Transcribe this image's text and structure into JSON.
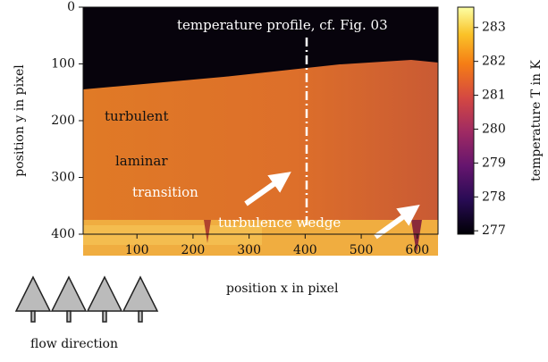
{
  "chart_data": {
    "type": "heatmap-image",
    "xlabel": "position x in pixel",
    "ylabel": "position y in pixel",
    "xlim": [
      4,
      637
    ],
    "xticks": [
      100,
      200,
      300,
      400,
      500,
      600
    ],
    "ylim": [
      0,
      400
    ],
    "yticks": [
      0,
      100,
      200,
      300,
      400
    ],
    "y_inverted": true,
    "colorbar": {
      "label": "temperature T in K",
      "lim": [
        276.9,
        283.6
      ],
      "ticks": [
        277,
        278,
        279,
        280,
        281,
        282,
        283
      ],
      "colormap": "inferno"
    },
    "annotations": {
      "profile": "temperature profile, cf. Fig. 03",
      "turbulent": "turbulent",
      "laminar": "laminar",
      "transition": "transition",
      "wedge": "turbulence wedge",
      "flow": "flow direction"
    }
  }
}
